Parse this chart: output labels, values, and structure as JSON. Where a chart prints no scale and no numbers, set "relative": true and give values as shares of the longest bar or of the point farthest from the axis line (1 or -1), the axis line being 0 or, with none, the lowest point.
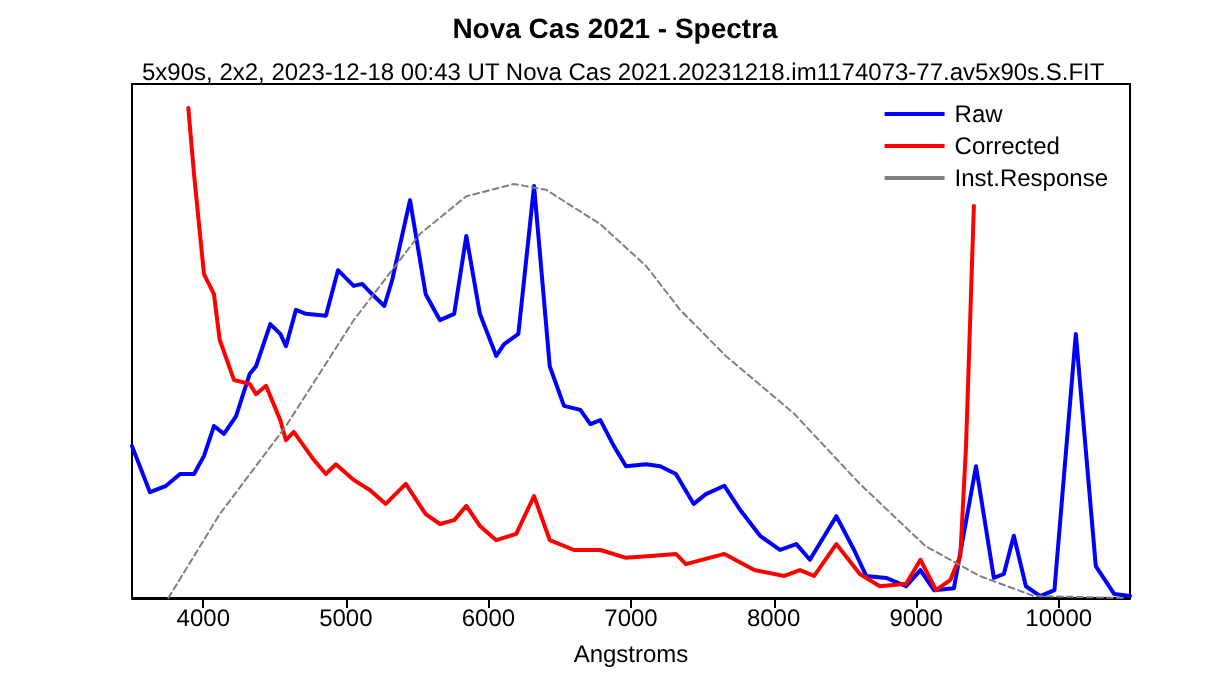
{
  "chart_data": {
    "type": "line",
    "title": "Nova Cas 2021 - Spectra",
    "subtitle": "5x90s, 2x2, 2023-12-18 00:43 UT Nova Cas 2021.20231218.im1174073-77.av5x90s.S.FIT",
    "xlabel": "Angstroms",
    "relative": true,
    "xlim": [
      3500,
      10500
    ],
    "xticks": [
      4000,
      5000,
      6000,
      7000,
      8000,
      9000,
      10000
    ],
    "legend": "top right",
    "grid": false,
    "marker": "none",
    "series": [
      {
        "name": "Raw",
        "color": "#0000ff",
        "line_style": "solid",
        "x": [
          3500,
          3626,
          3739,
          3837,
          3935,
          4005,
          4075,
          4145,
          4230,
          4325,
          4370,
          4470,
          4540,
          4580,
          4650,
          4720,
          4860,
          4945,
          5055,
          5115,
          5170,
          5270,
          5325,
          5450,
          5560,
          5660,
          5760,
          5845,
          5940,
          6055,
          6110,
          6210,
          6320,
          6430,
          6530,
          6645,
          6715,
          6785,
          6880,
          6965,
          7105,
          7205,
          7315,
          7440,
          7525,
          7655,
          7765,
          7905,
          8045,
          8160,
          8255,
          8440,
          8565,
          8650,
          8790,
          8930,
          9030,
          9125,
          9265,
          9420,
          9545,
          9615,
          9685,
          9770,
          9870,
          9970,
          10120,
          10260,
          10390,
          10500
        ],
        "values": [
          0.31,
          0.216,
          0.229,
          0.253,
          0.253,
          0.29,
          0.351,
          0.335,
          0.371,
          0.457,
          0.473,
          0.559,
          0.539,
          0.514,
          0.588,
          0.58,
          0.576,
          0.669,
          0.637,
          0.641,
          0.624,
          0.596,
          0.649,
          0.812,
          0.62,
          0.567,
          0.58,
          0.739,
          0.58,
          0.494,
          0.518,
          0.539,
          0.841,
          0.473,
          0.392,
          0.384,
          0.355,
          0.363,
          0.31,
          0.269,
          0.273,
          0.269,
          0.253,
          0.192,
          0.212,
          0.229,
          0.18,
          0.127,
          0.098,
          0.11,
          0.078,
          0.167,
          0.098,
          0.045,
          0.041,
          0.024,
          0.057,
          0.016,
          0.02,
          0.269,
          0.041,
          0.049,
          0.127,
          0.024,
          0.004,
          0.016,
          0.539,
          0.065,
          0.008,
          0.004
        ]
      },
      {
        "name": "Corrected",
        "color": "#ff0000",
        "line_style": "solid",
        "x": [
          3895,
          3935,
          4005,
          4075,
          4115,
          4215,
          4325,
          4370,
          4440,
          4540,
          4580,
          4635,
          4775,
          4860,
          4930,
          5055,
          5170,
          5280,
          5420,
          5560,
          5660,
          5760,
          5845,
          5940,
          6055,
          6195,
          6320,
          6430,
          6600,
          6785,
          6965,
          7160,
          7315,
          7385,
          7655,
          7865,
          8075,
          8185,
          8285,
          8440,
          8605,
          8745,
          8930,
          9030,
          9140,
          9240,
          9310,
          9350,
          9405
        ],
        "values": [
          1.0,
          0.865,
          0.661,
          0.62,
          0.527,
          0.445,
          0.437,
          0.416,
          0.433,
          0.363,
          0.322,
          0.339,
          0.282,
          0.253,
          0.273,
          0.241,
          0.22,
          0.192,
          0.233,
          0.171,
          0.151,
          0.159,
          0.188,
          0.147,
          0.118,
          0.131,
          0.208,
          0.118,
          0.098,
          0.098,
          0.082,
          0.086,
          0.09,
          0.069,
          0.09,
          0.057,
          0.045,
          0.057,
          0.045,
          0.11,
          0.049,
          0.024,
          0.029,
          0.078,
          0.016,
          0.037,
          0.086,
          0.31,
          0.8
        ]
      },
      {
        "name": "Inst.Response",
        "color": "#808080",
        "line_style": "dashed",
        "x": [
          3755,
          4115,
          4580,
          5055,
          5520,
          5845,
          6180,
          6405,
          6785,
          7105,
          7345,
          7665,
          8145,
          8605,
          9065,
          9445,
          9825,
          10475
        ],
        "values": [
          0,
          0.171,
          0.351,
          0.567,
          0.743,
          0.82,
          0.845,
          0.833,
          0.763,
          0.678,
          0.588,
          0.494,
          0.376,
          0.233,
          0.106,
          0.045,
          0.004,
          0
        ]
      }
    ]
  }
}
